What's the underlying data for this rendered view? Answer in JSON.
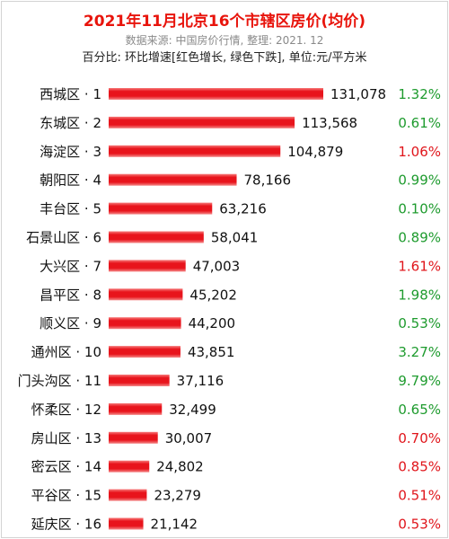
{
  "header": {
    "title": "2021年11月北京16个市辖区房价(均价)",
    "source": "数据来源: 中国房价行情, 整理: 2021. 12",
    "note": "百分比: 环比增速[红色增长, 绿色下跌], 单位:元/平方米"
  },
  "colors": {
    "title": "#e8140c",
    "bar": "#e8141c",
    "increase": "#e0151b",
    "decrease": "#1e9b2e"
  },
  "chart_data": {
    "type": "bar",
    "orientation": "horizontal",
    "title": "2021年11月北京16个市辖区房价(均价)",
    "unit": "元/平方米",
    "categories": [
      "西城区 · 1",
      "东城区 · 2",
      "海淀区 · 3",
      "朝阳区 · 4",
      "丰台区 · 5",
      "石景山区 · 6",
      "大兴区 · 7",
      "昌平区 · 8",
      "顺义区 · 9",
      "通州区 · 10",
      "门头沟区 · 11",
      "怀柔区 · 12",
      "房山区 · 13",
      "密云区 · 14",
      "平谷区 · 15",
      "延庆区 · 16"
    ],
    "values": [
      131078,
      113568,
      104879,
      78166,
      63216,
      58041,
      47003,
      45202,
      44200,
      43851,
      37116,
      32499,
      30007,
      24802,
      23279,
      21142
    ],
    "value_labels": [
      "131,078",
      "113,568",
      "104,879",
      "78,166",
      "63,216",
      "58,041",
      "47,003",
      "45,202",
      "44,200",
      "43,851",
      "37,116",
      "32,499",
      "30,007",
      "24,802",
      "23,279",
      "21,142"
    ],
    "mom_change": [
      "1.32%",
      "0.61%",
      "1.06%",
      "0.99%",
      "0.10%",
      "0.89%",
      "1.61%",
      "1.98%",
      "0.53%",
      "3.27%",
      "9.79%",
      "0.65%",
      "0.70%",
      "0.85%",
      "0.51%",
      "0.53%"
    ],
    "mom_direction": [
      "down",
      "down",
      "up",
      "down",
      "down",
      "down",
      "up",
      "down",
      "down",
      "down",
      "down",
      "down",
      "up",
      "up",
      "up",
      "up"
    ],
    "xlim": [
      0,
      131078
    ],
    "grid": false,
    "legend": "none"
  }
}
